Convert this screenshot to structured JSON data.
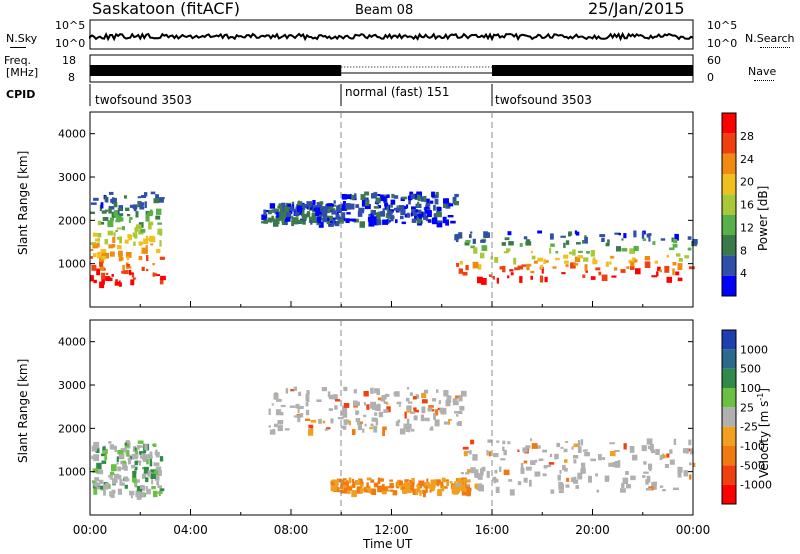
{
  "header": {
    "station": "Saskatoon (fitACF)",
    "beam": "Beam 08",
    "date": "25/Jan/2015"
  },
  "panels": {
    "nsky": {
      "label": "N.Sky",
      "ticks": [
        "10^5",
        "10^0"
      ]
    },
    "nsearch": {
      "label": "N.Search",
      "ticks": [
        "10^5",
        "10^0"
      ]
    },
    "freq": {
      "label1": "Freq.",
      "label2": "[MHz]",
      "ticks": [
        "18",
        "8"
      ]
    },
    "nave": {
      "label": "Nave",
      "ticks": [
        "60",
        "0"
      ]
    },
    "cpid": {
      "label": "CPID",
      "segments": [
        {
          "name": "twofsound 3503",
          "start": 0,
          "end": 10
        },
        {
          "name": "normal (fast) 151",
          "start": 10,
          "end": 16
        },
        {
          "name": "twofsound 3503",
          "start": 16,
          "end": 24
        }
      ]
    }
  },
  "colors": {
    "power": [
      "#0000ff",
      "#2f4fa8",
      "#3a7a4a",
      "#58b048",
      "#a8c838",
      "#f0c020",
      "#f08a10",
      "#f04010",
      "#ff0000"
    ],
    "velocity": [
      "#1d3fb0",
      "#2a6a8a",
      "#2f8a4a",
      "#6ac040",
      "#b0b0b0",
      "#f0a020",
      "#f07a10",
      "#f04010",
      "#ff0000"
    ]
  },
  "chart_data": [
    {
      "type": "heatmap",
      "title": "",
      "xlabel": "",
      "ylabel": "Slant Range [km]",
      "xlim": [
        0,
        24
      ],
      "ylim": [
        0,
        4500
      ],
      "yticks": [
        1000,
        2000,
        3000,
        4000
      ],
      "colorbar": {
        "label": "Power [dB]",
        "ticks": [
          "4",
          "8",
          "12",
          "16",
          "20",
          "24",
          "28"
        ]
      },
      "features": [
        {
          "time_start": 0.0,
          "time_end": 2.8,
          "range_start": 500,
          "range_end": 2600,
          "level": "mixed, strong near 800 km"
        },
        {
          "time_start": 6.8,
          "time_end": 10.0,
          "range_start": 1900,
          "range_end": 2400,
          "level": "weak-moderate"
        },
        {
          "time_start": 10.0,
          "time_end": 14.5,
          "range_start": 1900,
          "range_end": 2600,
          "level": "weak-moderate"
        },
        {
          "time_start": 14.5,
          "time_end": 24.0,
          "range_start": 600,
          "range_end": 1700,
          "level": "strong"
        }
      ]
    },
    {
      "type": "heatmap",
      "title": "",
      "xlabel": "Time UT",
      "ylabel": "Slant Range [km]",
      "xlim": [
        0,
        24
      ],
      "ylim": [
        0,
        4500
      ],
      "xticks": [
        "00:00",
        "04:00",
        "08:00",
        "12:00",
        "16:00",
        "20:00",
        "00:00"
      ],
      "yticks": [
        1000,
        2000,
        3000,
        4000
      ],
      "colorbar": {
        "label": "Velocity [m s^-1]",
        "ticks": [
          "1000",
          "500",
          "100",
          "25",
          "-25",
          "-100",
          "-500",
          "-1000"
        ]
      },
      "features": [
        {
          "time_start": 0.0,
          "time_end": 2.8,
          "range_start": 400,
          "range_end": 1700,
          "level": "gray / green mix"
        },
        {
          "time_start": 7.0,
          "time_end": 14.8,
          "range_start": 1900,
          "range_end": 2900,
          "level": "gray (ground scatter)"
        },
        {
          "time_start": 9.5,
          "time_end": 15.0,
          "range_start": 500,
          "range_end": 800,
          "level": "orange (negative)"
        },
        {
          "time_start": 14.5,
          "time_end": 24.0,
          "range_start": 500,
          "range_end": 1700,
          "level": "gray"
        }
      ]
    }
  ]
}
